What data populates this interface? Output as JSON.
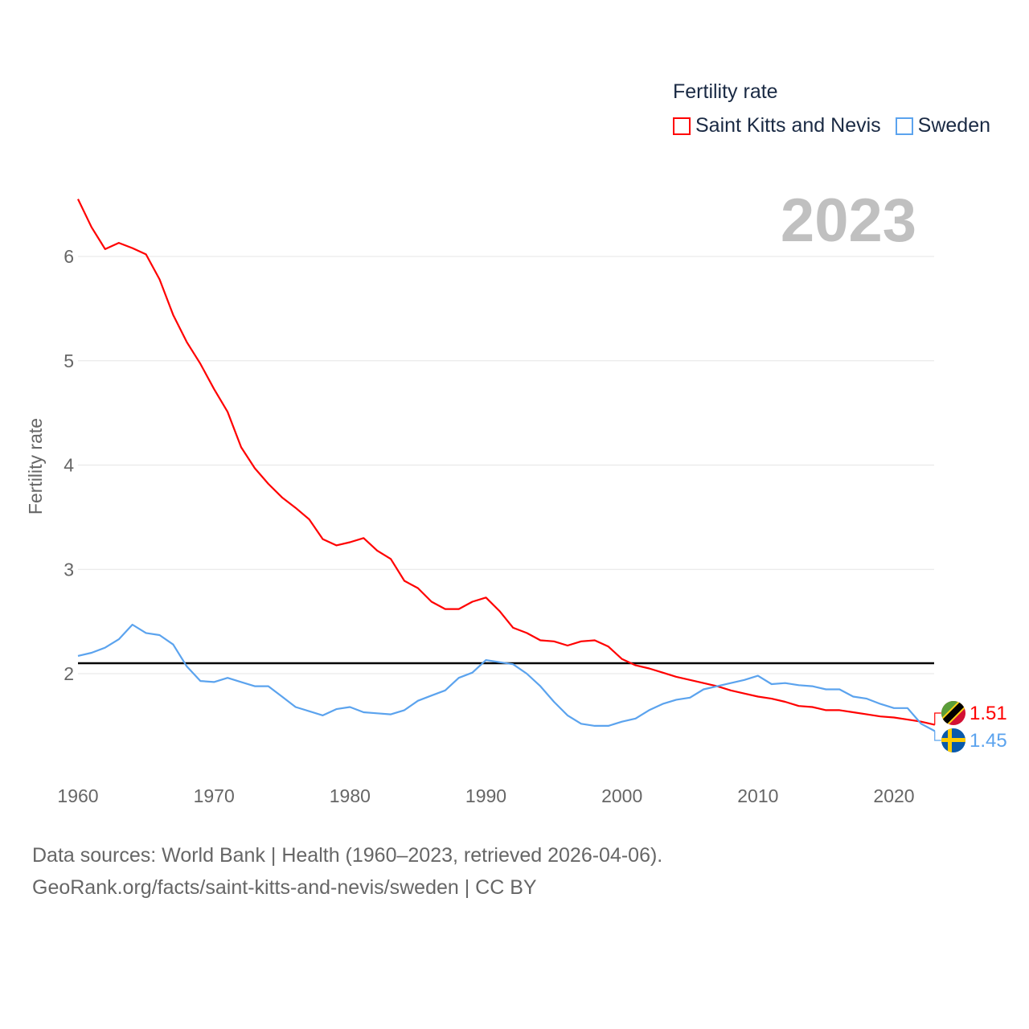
{
  "legend": {
    "title": "Fertility rate",
    "items": [
      {
        "label": "Saint Kitts and Nevis",
        "color": "#ff0000"
      },
      {
        "label": "Sweden",
        "color": "#5ba3ee"
      }
    ]
  },
  "year_label": "2023",
  "source": {
    "line1": "Data sources: World Bank | Health (1960–2023, retrieved 2026-04-06).",
    "line2": "GeoRank.org/facts/saint-kitts-and-nevis/sweden | CC BY"
  },
  "chart_data": {
    "type": "line",
    "title": "Fertility rate",
    "xlabel": "",
    "ylabel": "Fertility rate",
    "xlim": [
      1960,
      2023
    ],
    "ylim": [
      1.2,
      6.6
    ],
    "x_ticks": [
      "1960",
      "1970",
      "1980",
      "1990",
      "2000",
      "2010",
      "2020"
    ],
    "y_ticks": [
      "2",
      "3",
      "4",
      "5",
      "6"
    ],
    "grid": true,
    "legend_position": "top-right",
    "reference_line": 2.1,
    "x_start": 1960,
    "series": [
      {
        "name": "Saint Kitts and Nevis",
        "color": "#ff0000",
        "end_label": "1.51",
        "values": [
          6.55,
          6.28,
          6.07,
          6.13,
          6.08,
          6.02,
          5.78,
          5.44,
          5.18,
          4.97,
          4.73,
          4.51,
          4.17,
          3.97,
          3.82,
          3.69,
          3.59,
          3.48,
          3.29,
          3.23,
          3.26,
          3.3,
          3.18,
          3.1,
          2.89,
          2.82,
          2.69,
          2.62,
          2.62,
          2.69,
          2.73,
          2.6,
          2.44,
          2.39,
          2.32,
          2.31,
          2.27,
          2.31,
          2.32,
          2.26,
          2.14,
          2.08,
          2.05,
          2.01,
          1.97,
          1.94,
          1.91,
          1.88,
          1.84,
          1.81,
          1.78,
          1.76,
          1.73,
          1.69,
          1.68,
          1.65,
          1.65,
          1.63,
          1.61,
          1.59,
          1.58,
          1.56,
          1.54,
          1.51
        ]
      },
      {
        "name": "Sweden",
        "color": "#5ba3ee",
        "end_label": "1.45",
        "values": [
          2.17,
          2.2,
          2.25,
          2.33,
          2.47,
          2.39,
          2.37,
          2.28,
          2.07,
          1.93,
          1.92,
          1.96,
          1.92,
          1.88,
          1.88,
          1.78,
          1.68,
          1.64,
          1.6,
          1.66,
          1.68,
          1.63,
          1.62,
          1.61,
          1.65,
          1.74,
          1.79,
          1.84,
          1.96,
          2.01,
          2.13,
          2.11,
          2.09,
          2.0,
          1.88,
          1.73,
          1.6,
          1.52,
          1.5,
          1.5,
          1.54,
          1.57,
          1.65,
          1.71,
          1.75,
          1.77,
          1.85,
          1.88,
          1.91,
          1.94,
          1.98,
          1.9,
          1.91,
          1.89,
          1.88,
          1.85,
          1.85,
          1.78,
          1.76,
          1.71,
          1.67,
          1.67,
          1.52,
          1.45
        ]
      }
    ]
  }
}
